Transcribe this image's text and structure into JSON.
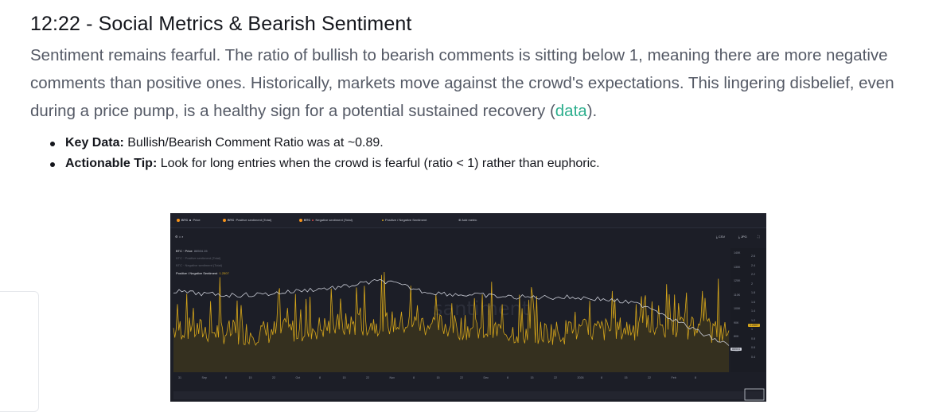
{
  "article": {
    "title": "12:22 - Social Metrics & Bearish Sentiment",
    "body_before_link": "Sentiment remains fearful. The ratio of bullish to bearish comments is sitting below 1, meaning there are more negative comments than positive ones. Historically, markets move against the crowd's expectations. This lingering disbelief, even during a price pump, is a healthy sign for a potential sustained recovery (",
    "link_text": "data",
    "body_after_link": ").",
    "bullets": [
      {
        "label": "Key Data:",
        "text": " Bullish/Bearish Comment Ratio was at ~0.89."
      },
      {
        "label": "Actionable Tip:",
        "text": " Look for long entries when the crowd is fearful (ratio < 1) rather than euphoric."
      }
    ]
  },
  "chart_toolbar": {
    "items": [
      {
        "asset": "BTC",
        "metric": "Price"
      },
      {
        "asset": "BTC",
        "metric": "Positive sentiment (Total)"
      },
      {
        "asset": "BTC",
        "metric": "Negative sentiment (Total)"
      },
      {
        "asset": "",
        "metric": "Positive / Negative Sentiment"
      }
    ],
    "add_metric": "Add metric",
    "csv": "CSV",
    "jpg": "JPG"
  },
  "chart_legend": [
    {
      "label": "BTC · Price",
      "value": "88504.15"
    },
    {
      "label": "BTC · Positive sentiment (Total)",
      "value": ""
    },
    {
      "label": "BTC · Negative sentiment (Total)",
      "value": ""
    },
    {
      "label": "Positive / Negative Sentiment",
      "value": "1.2507"
    }
  ],
  "chart_watermark": "santiment",
  "chart_data": {
    "type": "line",
    "series": [
      {
        "name": "BTC · Price",
        "color": "#c9ccd6"
      },
      {
        "name": "Positive / Negative Sentiment",
        "color": "#d6a61b"
      }
    ],
    "x_ticks": [
      "31",
      "Sep",
      "8",
      "15",
      "22",
      "Oct",
      "8",
      "15",
      "22",
      "Nov",
      "8",
      "15",
      "22",
      "Dec",
      "8",
      "15",
      "22",
      "2026",
      "8",
      "15",
      "22",
      "Feb",
      "8"
    ],
    "price_axis_ticks": [
      "140K",
      "130K",
      "120K",
      "110K",
      "100K",
      "90K",
      "80K",
      "70K"
    ],
    "ratio_axis_ticks": [
      "2.6",
      "2.4",
      "2.2",
      "2",
      "1.8",
      "1.6",
      "1.4",
      "1.2",
      "1",
      "0.8",
      "0.6",
      "0.4"
    ],
    "price_label": "88504",
    "ratio_label": "1.2507"
  }
}
